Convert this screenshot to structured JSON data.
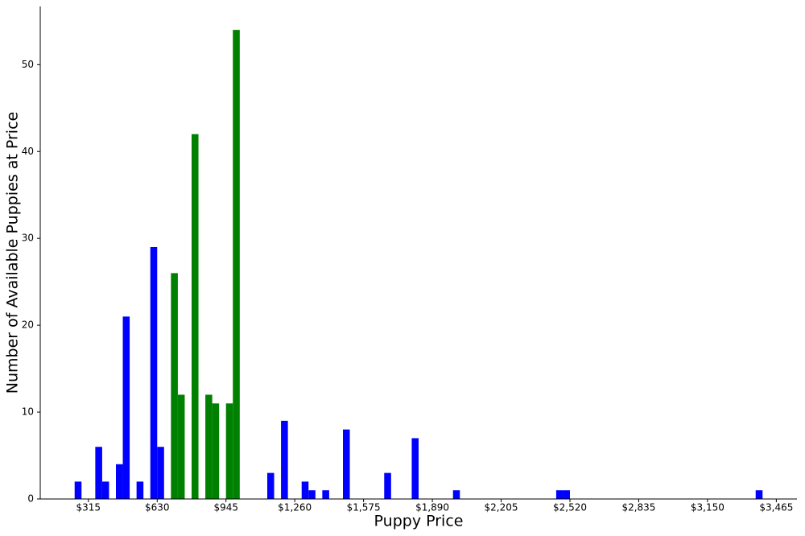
{
  "chart_data": {
    "type": "histogram",
    "x_label": "Puppy Price",
    "y_label": "Number of Available Puppies at Price",
    "bins": [
      252,
      283.5,
      315,
      346.5,
      378,
      409.5,
      441,
      472.5,
      504,
      535.5,
      567,
      598.5,
      630,
      661.5,
      693,
      724.5,
      756,
      787.5,
      819,
      850.5,
      882,
      913.5,
      945,
      976.5,
      1008,
      1039.5,
      1071,
      1102.5,
      1134,
      1165.5,
      1197,
      1228.5,
      1260,
      1291.5,
      1323,
      1354.5,
      1386,
      1417.5,
      1449,
      1480.5,
      1512,
      1543.5,
      1575,
      1606.5,
      1638,
      1669.5,
      1701,
      1732.5,
      1764,
      1795.5,
      1827,
      1858.5,
      1890,
      1921.5,
      1953,
      1984.5,
      2016,
      2047.5,
      2079,
      2110.5,
      2142,
      2173.5,
      2205,
      2236.5,
      2268,
      2299.5,
      2331,
      2362.5,
      2394,
      2425.5,
      2457,
      2488.5,
      2520,
      2551.5,
      2583,
      2614.5,
      2646,
      2677.5,
      2709,
      2740.5,
      2772,
      2803.5,
      2835,
      2866.5,
      2898,
      2929.5,
      2961,
      2992.5,
      3024,
      3055.5,
      3087,
      3118.5,
      3150,
      3181.5,
      3213,
      3244.5,
      3276,
      3307.5,
      3339,
      3370.5,
      3402
    ],
    "values": [
      2,
      0,
      0,
      6,
      2,
      0,
      4,
      21,
      0,
      2,
      0,
      29,
      6,
      0,
      26,
      12,
      0,
      42,
      0,
      12,
      11,
      0,
      11,
      54,
      0,
      0,
      0,
      0,
      3,
      0,
      9,
      0,
      0,
      2,
      1,
      0,
      1,
      0,
      0,
      8,
      0,
      0,
      0,
      0,
      0,
      3,
      0,
      0,
      0,
      7,
      0,
      0,
      0,
      0,
      0,
      1,
      0,
      0,
      0,
      0,
      0,
      0,
      0,
      0,
      0,
      0,
      0,
      0,
      0,
      0,
      1,
      1,
      0,
      0,
      0,
      0,
      0,
      0,
      0,
      0,
      0,
      0,
      0,
      0,
      0,
      0,
      0,
      0,
      0,
      0,
      0,
      0,
      0,
      0,
      0,
      0,
      0,
      0,
      0,
      1
    ],
    "colors": [
      "#0000ff",
      "#0000ff",
      "#0000ff",
      "#0000ff",
      "#0000ff",
      "#0000ff",
      "#0000ff",
      "#0000ff",
      "#0000ff",
      "#0000ff",
      "#0000ff",
      "#0000ff",
      "#0000ff",
      "#0000ff",
      "#008000",
      "#008000",
      "#008000",
      "#008000",
      "#008000",
      "#008000",
      "#008000",
      "#008000",
      "#008000",
      "#008000",
      "#0000ff",
      "#0000ff",
      "#0000ff",
      "#0000ff",
      "#0000ff",
      "#0000ff",
      "#0000ff",
      "#0000ff",
      "#0000ff",
      "#0000ff",
      "#0000ff",
      "#0000ff",
      "#0000ff",
      "#0000ff",
      "#0000ff",
      "#0000ff",
      "#0000ff",
      "#0000ff",
      "#0000ff",
      "#0000ff",
      "#0000ff",
      "#0000ff",
      "#0000ff",
      "#0000ff",
      "#0000ff",
      "#0000ff",
      "#0000ff",
      "#0000ff",
      "#0000ff",
      "#0000ff",
      "#0000ff",
      "#0000ff",
      "#0000ff",
      "#0000ff",
      "#0000ff",
      "#0000ff",
      "#0000ff",
      "#0000ff",
      "#0000ff",
      "#0000ff",
      "#0000ff",
      "#0000ff",
      "#0000ff",
      "#0000ff",
      "#0000ff",
      "#0000ff",
      "#0000ff",
      "#0000ff",
      "#0000ff",
      "#0000ff",
      "#0000ff",
      "#0000ff",
      "#0000ff",
      "#0000ff",
      "#0000ff",
      "#0000ff",
      "#0000ff",
      "#0000ff",
      "#0000ff",
      "#0000ff",
      "#0000ff",
      "#0000ff",
      "#0000ff",
      "#0000ff",
      "#0000ff",
      "#0000ff",
      "#0000ff",
      "#0000ff",
      "#0000ff",
      "#0000ff",
      "#0000ff",
      "#0000ff",
      "#0000ff",
      "#0000ff",
      "#0000ff",
      "#0000ff"
    ],
    "xlim": [
      94.5,
      3559.5
    ],
    "ylim": [
      0,
      56.7
    ],
    "xticks": [
      {
        "value": 315,
        "label": "$315"
      },
      {
        "value": 630,
        "label": "$630"
      },
      {
        "value": 945,
        "label": "$945"
      },
      {
        "value": 1260,
        "label": "$1,260"
      },
      {
        "value": 1575,
        "label": "$1,575"
      },
      {
        "value": 1890,
        "label": "$1,890"
      },
      {
        "value": 2205,
        "label": "$2,205"
      },
      {
        "value": 2520,
        "label": "$2,520"
      },
      {
        "value": 2835,
        "label": "$2,835"
      },
      {
        "value": 3150,
        "label": "$3,150"
      },
      {
        "value": 3465,
        "label": "$3,465"
      }
    ],
    "yticks": [
      0,
      10,
      20,
      30,
      40,
      50
    ],
    "grid": false
  }
}
